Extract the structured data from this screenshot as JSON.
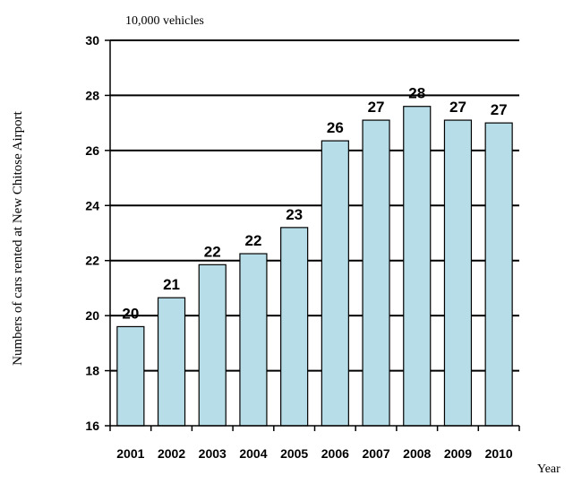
{
  "chart_data": {
    "type": "bar",
    "unit_label": "10,000 vehicles",
    "ylabel": "Numbers of cars rented at New Chitose Airport",
    "xlabel": "Year",
    "categories": [
      "2001",
      "2002",
      "2003",
      "2004",
      "2005",
      "2006",
      "2007",
      "2008",
      "2009",
      "2010"
    ],
    "values": [
      19.6,
      20.65,
      21.85,
      22.25,
      23.2,
      26.35,
      27.1,
      27.6,
      27.1,
      27.0
    ],
    "data_labels": [
      "20",
      "21",
      "22",
      "22",
      "23",
      "26",
      "27",
      "28",
      "27",
      "27"
    ],
    "ylim": [
      16,
      30
    ],
    "yticks": [
      16,
      18,
      20,
      22,
      24,
      26,
      28,
      30
    ],
    "grid": true,
    "bar_color": "#b7dde8",
    "bar_edge_color": "#000000"
  }
}
